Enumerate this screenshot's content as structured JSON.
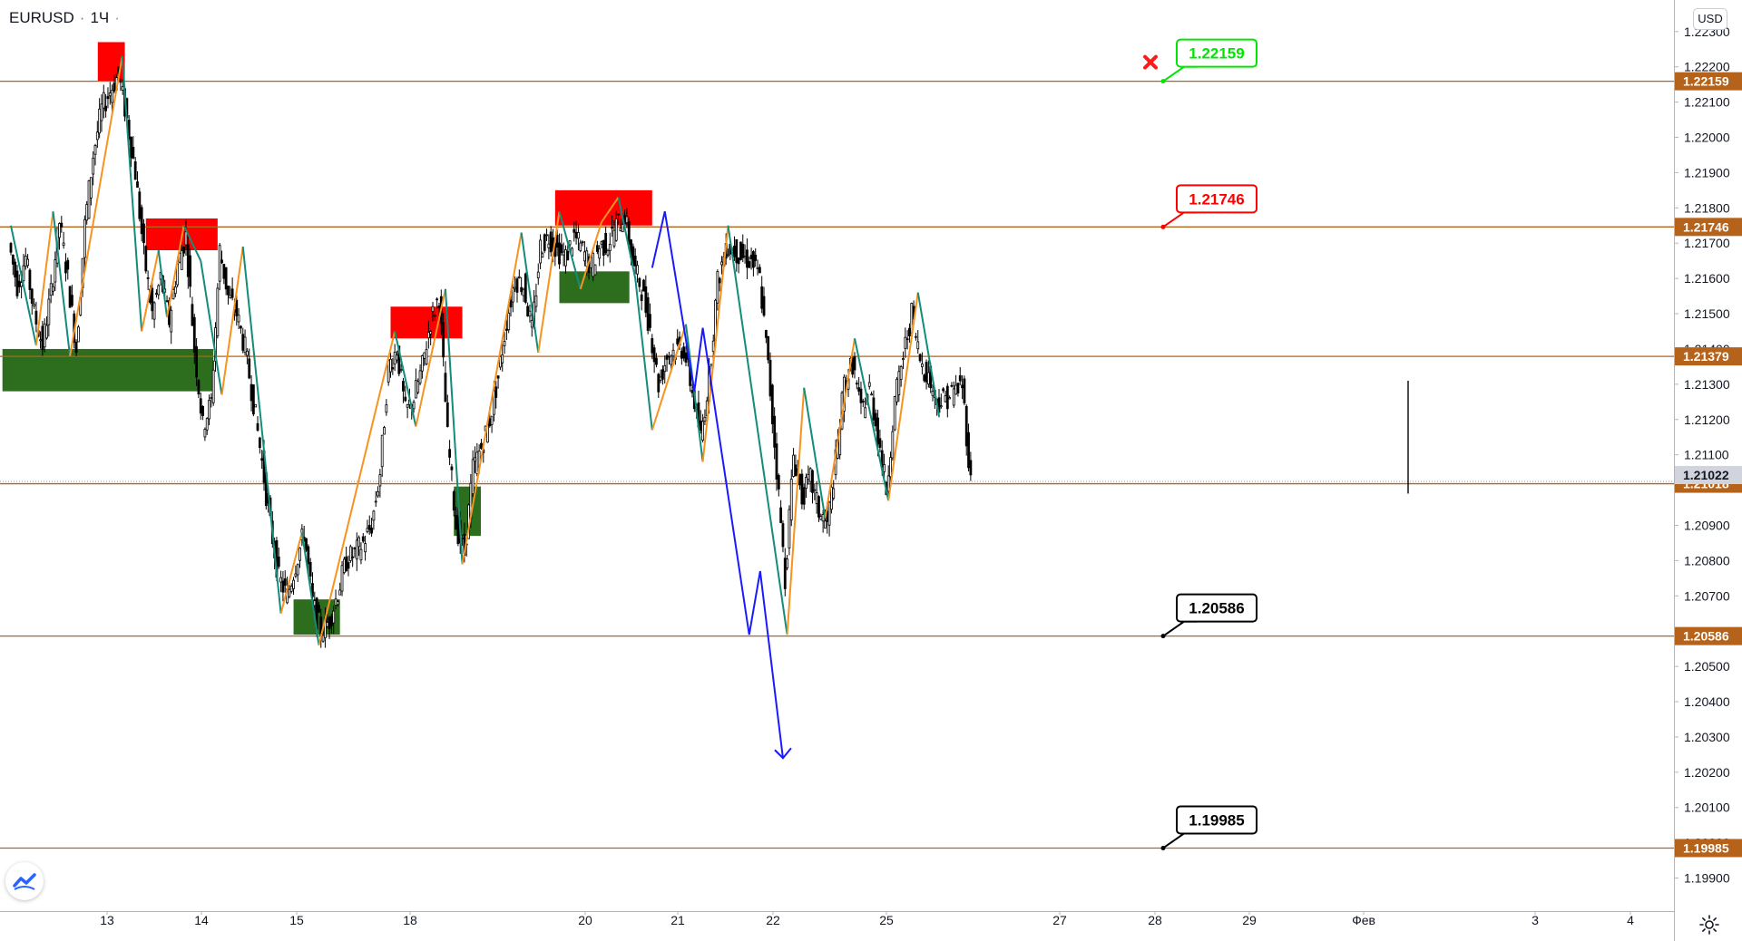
{
  "header": {
    "symbol": "EURUSD",
    "timeframe": "1Ч",
    "currency": "USD"
  },
  "colors": {
    "level_line": "#b5621a",
    "level_badge": "#b5621a",
    "current_price_badge": "#d1d4dc",
    "zigzag_up": "#f7931e",
    "zigzag_down": "#138c7a",
    "projection": "#1a1aff",
    "supply_zone": "#ff0000",
    "demand_zone": "#2d6e1e",
    "candle": "#000000"
  },
  "chart_data": {
    "type": "candlestick",
    "ylim": [
      1.1985,
      1.2232
    ],
    "x_ticks": [
      "13",
      "14",
      "15",
      "18",
      "20",
      "21",
      "22",
      "25",
      "27",
      "28",
      "29",
      "Фев",
      "3",
      "4"
    ],
    "y_ticks": [
      "1.19900",
      "1.20000",
      "1.20100",
      "1.20200",
      "1.20300",
      "1.20400",
      "1.20500",
      "1.20700",
      "1.20800",
      "1.20900",
      "1.21100",
      "1.21200",
      "1.21300",
      "1.21400",
      "1.21500",
      "1.21600",
      "1.21700",
      "1.21800",
      "1.21900",
      "1.22000",
      "1.22100",
      "1.22200",
      "1.22300"
    ],
    "levels": [
      {
        "value": 1.22159,
        "label": "1.22159"
      },
      {
        "value": 1.21746,
        "label": "1.21746"
      },
      {
        "value": 1.21379,
        "label": "1.21379"
      },
      {
        "value": 1.21018,
        "label": "1.21018"
      },
      {
        "value": 1.20586,
        "label": "1.20586"
      },
      {
        "value": 1.19985,
        "label": "1.19985"
      }
    ],
    "current_price": {
      "value": 1.21022,
      "label": "1.21022"
    },
    "callouts": [
      {
        "text": "1.22159",
        "value": 1.22159,
        "color": "#00e600",
        "status": "hit"
      },
      {
        "text": "1.21746",
        "value": 1.21746,
        "color": "#ff0000"
      },
      {
        "text": "1.20586",
        "value": 1.20586,
        "color": "#000000"
      },
      {
        "text": "1.19985",
        "value": 1.19985,
        "color": "#000000"
      }
    ],
    "zigzag": [
      {
        "t": 0,
        "p": 1.2175
      },
      {
        "t": 3,
        "p": 1.2141
      },
      {
        "t": 5,
        "p": 1.2179
      },
      {
        "t": 7,
        "p": 1.2138
      },
      {
        "t": 13.2,
        "p": 1.2223
      },
      {
        "t": 15.5,
        "p": 1.2145
      },
      {
        "t": 17.5,
        "p": 1.2168
      },
      {
        "t": 18.5,
        "p": 1.2149
      },
      {
        "t": 20.5,
        "p": 1.2175
      },
      {
        "t": 22.5,
        "p": 1.2165
      },
      {
        "t": 25,
        "p": 1.2127
      },
      {
        "t": 27.5,
        "p": 1.2169
      },
      {
        "t": 32,
        "p": 1.2065
      },
      {
        "t": 34.5,
        "p": 1.2088
      },
      {
        "t": 36.5,
        "p": 1.2056
      },
      {
        "t": 45.5,
        "p": 1.2145
      },
      {
        "t": 48,
        "p": 1.2118
      },
      {
        "t": 51.5,
        "p": 1.2157
      },
      {
        "t": 53.5,
        "p": 1.2079
      },
      {
        "t": 60.5,
        "p": 1.2173
      },
      {
        "t": 62.5,
        "p": 1.2139
      },
      {
        "t": 65,
        "p": 1.2179
      },
      {
        "t": 67.5,
        "p": 1.2157
      },
      {
        "t": 70,
        "p": 1.2176
      },
      {
        "t": 72,
        "p": 1.2183
      },
      {
        "t": 74,
        "p": 1.216
      },
      {
        "t": 76,
        "p": 1.2117
      },
      {
        "t": 80,
        "p": 1.2147
      },
      {
        "t": 82,
        "p": 1.2108
      },
      {
        "t": 85,
        "p": 1.2175
      },
      {
        "t": 92,
        "p": 1.2059
      },
      {
        "t": 94,
        "p": 1.2129
      },
      {
        "t": 96.5,
        "p": 1.2092
      },
      {
        "t": 100,
        "p": 1.2143
      },
      {
        "t": 104,
        "p": 1.2097
      },
      {
        "t": 107.5,
        "p": 1.2156
      },
      {
        "t": 110,
        "p": 1.2121
      }
    ],
    "projection": [
      {
        "t": 76,
        "p": 1.2163
      },
      {
        "t": 77.5,
        "p": 1.2179
      },
      {
        "t": 81,
        "p": 1.2128
      },
      {
        "t": 82,
        "p": 1.2146
      },
      {
        "t": 87.5,
        "p": 1.2059
      },
      {
        "t": 88.8,
        "p": 1.2077
      },
      {
        "t": 91.5,
        "p": 1.2024
      }
    ],
    "supply_zones": [
      {
        "t0": 10.3,
        "t1": 13.5,
        "p0": 1.22159,
        "p1": 1.2227
      },
      {
        "t0": 16,
        "t1": 24.5,
        "p0": 1.2168,
        "p1": 1.2177
      },
      {
        "t0": 45,
        "t1": 53.5,
        "p0": 1.2143,
        "p1": 1.2152
      },
      {
        "t0": 64.5,
        "t1": 76,
        "p0": 1.2175,
        "p1": 1.2185
      }
    ],
    "demand_zones": [
      {
        "t0": -1,
        "t1": 24,
        "p0": 1.2128,
        "p1": 1.214
      },
      {
        "t0": 33.5,
        "t1": 39,
        "p0": 1.2059,
        "p1": 1.2069
      },
      {
        "t0": 52.5,
        "t1": 55.7,
        "p0": 1.2087,
        "p1": 1.2101
      },
      {
        "t0": 65,
        "t1": 73.3,
        "p0": 1.2153,
        "p1": 1.2162
      }
    ],
    "closes": [
      1.217,
      1.2158,
      1.2166,
      1.215,
      1.2141,
      1.2156,
      1.2176,
      1.216,
      1.214,
      1.2175,
      1.2195,
      1.2208,
      1.2213,
      1.2218,
      1.2205,
      1.219,
      1.2167,
      1.215,
      1.216,
      1.2148,
      1.2164,
      1.2172,
      1.214,
      1.2118,
      1.2125,
      1.2168,
      1.2155,
      1.215,
      1.214,
      1.2125,
      1.2108,
      1.209,
      1.2075,
      1.207,
      1.2079,
      1.2088,
      1.2068,
      1.206,
      1.2063,
      1.2071,
      1.208,
      1.2082,
      1.2085,
      1.209,
      1.2105,
      1.2135,
      1.214,
      1.2122,
      1.2126,
      1.2135,
      1.2148,
      1.2155,
      1.2115,
      1.209,
      1.2082,
      1.2106,
      1.2112,
      1.212,
      1.2132,
      1.2148,
      1.216,
      1.2158,
      1.2145,
      1.2169,
      1.2172,
      1.2168,
      1.2166,
      1.2172,
      1.2168,
      1.2163,
      1.2169,
      1.217,
      1.2175,
      1.2178,
      1.2164,
      1.2157,
      1.2146,
      1.213,
      1.2138,
      1.214,
      1.214,
      1.2128,
      1.2115,
      1.2132,
      1.2159,
      1.2169,
      1.2168,
      1.2166,
      1.2165,
      1.216,
      1.2135,
      1.2106,
      1.2075,
      1.211,
      1.2098,
      1.2103,
      1.2094,
      1.209,
      1.2108,
      1.213,
      1.2136,
      1.2122,
      1.2129,
      1.2116,
      1.21,
      1.2125,
      1.2138,
      1.215,
      1.2137,
      1.2132,
      1.2125,
      1.2126,
      1.2128,
      1.213,
      1.2102
    ]
  }
}
